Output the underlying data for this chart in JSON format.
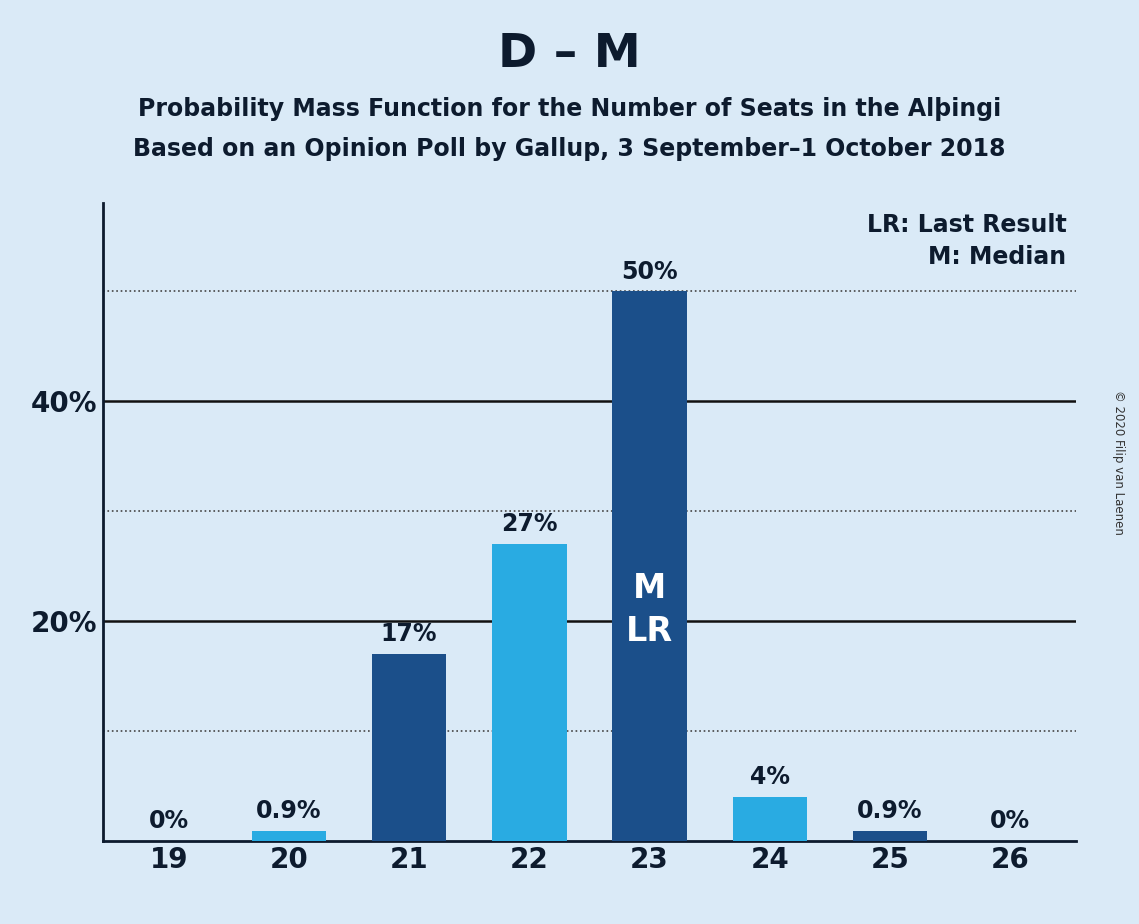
{
  "title": "D – M",
  "subtitle_line1": "Probability Mass Function for the Number of Seats in the Alþingi",
  "subtitle_line2": "Based on an Opinion Poll by Gallup, 3 September–1 October 2018",
  "copyright": "© 2020 Filip van Laenen",
  "seats": [
    19,
    20,
    21,
    22,
    23,
    24,
    25,
    26
  ],
  "values": [
    0.0,
    0.9,
    17.0,
    27.0,
    50.0,
    4.0,
    0.9,
    0.0
  ],
  "bar_labels": [
    "0%",
    "0.9%",
    "17%",
    "27%",
    "50%",
    "4%",
    "0.9%",
    "0%"
  ],
  "bar_colors": [
    "#1b4f8a",
    "#29abe2",
    "#1b4f8a",
    "#29abe2",
    "#1b4f8a",
    "#29abe2",
    "#1b4f8a",
    "#1b4f8a"
  ],
  "inside_label_seat": 23,
  "inside_label_text": "M\nLR",
  "inside_label_color": "#ffffff",
  "legend_lr": "LR: Last Result",
  "legend_m": "M: Median",
  "background_color": "#daeaf7",
  "plot_background_color": "#daeaf7",
  "ylim": [
    0,
    58
  ],
  "dotted_lines": [
    10,
    30,
    50
  ],
  "solid_lines": [
    20,
    40
  ],
  "ytick_positions": [
    20,
    40
  ],
  "ytick_labels": [
    "20%",
    "40%"
  ],
  "title_fontsize": 34,
  "subtitle_fontsize": 17,
  "bar_label_fontsize": 17,
  "axis_tick_fontsize": 20,
  "inside_label_fontsize": 24,
  "legend_fontsize": 17,
  "bar_width": 0.62
}
